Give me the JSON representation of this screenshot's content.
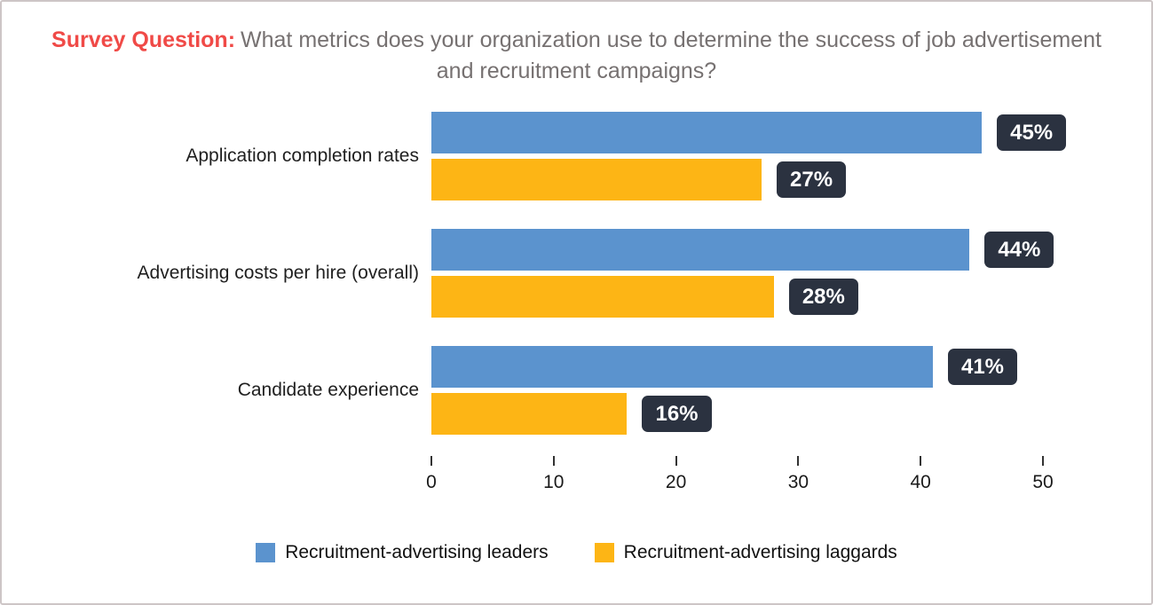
{
  "title": {
    "prefix": "Survey Question:",
    "text": "What metrics does your organization use to determine the success of job advertisement and recruitment campaigns?"
  },
  "colors": {
    "title_prefix": "#F04A47",
    "title_text": "#767171",
    "frame_border": "#CDC5C6",
    "badge_bg": "#2B3240",
    "badge_text": "#FFFFFF"
  },
  "chart_data": {
    "type": "bar",
    "orientation": "horizontal",
    "title": "What metrics does your organization use to determine the success of job advertisement and recruitment campaigns?",
    "categories": [
      "Application completion rates",
      "Advertising costs per hire (overall)",
      "Candidate experience"
    ],
    "series": [
      {
        "name": "Recruitment-advertising leaders",
        "color": "#5B93CE",
        "values": [
          45,
          44,
          41
        ]
      },
      {
        "name": "Recruitment-advertising laggards",
        "color": "#FDB515",
        "values": [
          27,
          28,
          16
        ]
      }
    ],
    "value_suffix": "%",
    "xlabel": "",
    "ylabel": "",
    "xlim": [
      0,
      50
    ],
    "x_ticks": [
      0,
      10,
      20,
      30,
      40,
      50
    ],
    "grid": false,
    "legend_position": "bottom"
  }
}
